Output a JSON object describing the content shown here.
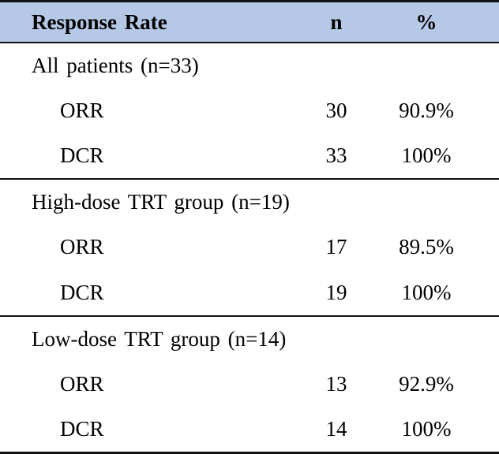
{
  "table": {
    "header": {
      "label": "Response Rate",
      "col_n": "n",
      "col_pct": "%"
    },
    "colors": {
      "header_bg": "#b5c8e6",
      "border": "#111111",
      "text": "#000000",
      "page_bg": "#ffffff"
    },
    "sections": [
      {
        "group_label": "All patients (n=33)",
        "rows": [
          {
            "label": "ORR",
            "n": "30",
            "pct": "90.9%"
          },
          {
            "label": "DCR",
            "n": "33",
            "pct": "100%"
          }
        ]
      },
      {
        "group_label": "High-dose TRT group (n=19)",
        "rows": [
          {
            "label": "ORR",
            "n": "17",
            "pct": "89.5%"
          },
          {
            "label": "DCR",
            "n": "19",
            "pct": "100%"
          }
        ]
      },
      {
        "group_label": "Low-dose TRT group (n=14)",
        "rows": [
          {
            "label": "ORR",
            "n": "13",
            "pct": "92.9%"
          },
          {
            "label": "DCR",
            "n": "14",
            "pct": "100%"
          }
        ]
      }
    ]
  },
  "chart_data": {
    "type": "table",
    "title": "Response Rate",
    "columns": [
      "Response Rate",
      "n",
      "%"
    ],
    "rows": [
      [
        "All patients (n=33)",
        "",
        ""
      ],
      [
        "ORR",
        30,
        "90.9%"
      ],
      [
        "DCR",
        33,
        "100%"
      ],
      [
        "High-dose TRT group (n=19)",
        "",
        ""
      ],
      [
        "ORR",
        17,
        "89.5%"
      ],
      [
        "DCR",
        19,
        "100%"
      ],
      [
        "Low-dose TRT group (n=14)",
        "",
        ""
      ],
      [
        "ORR",
        13,
        "92.9%"
      ],
      [
        "DCR",
        14,
        "100%"
      ]
    ]
  }
}
